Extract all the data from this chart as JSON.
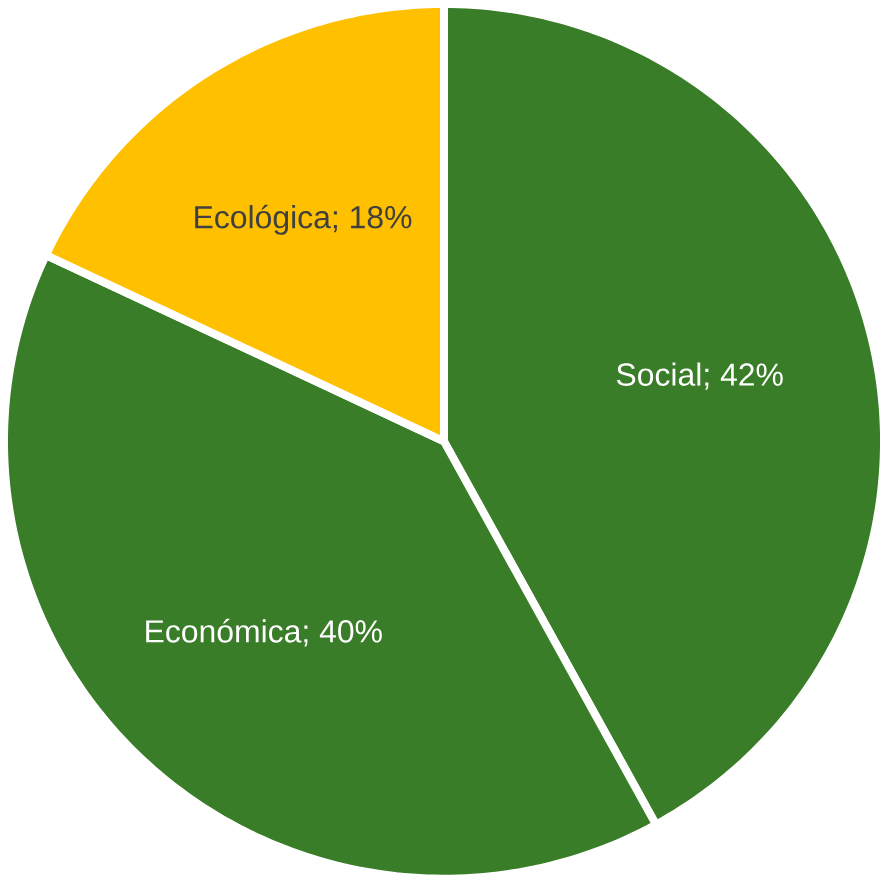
{
  "chart_data": {
    "type": "pie",
    "categories": [
      "Social; 42%",
      "Económica; 40%",
      "Ecológica; 18%"
    ],
    "values": [
      42,
      40,
      18
    ],
    "colors": [
      "#3a7d28",
      "#3a7d28",
      "#ffc000"
    ]
  }
}
